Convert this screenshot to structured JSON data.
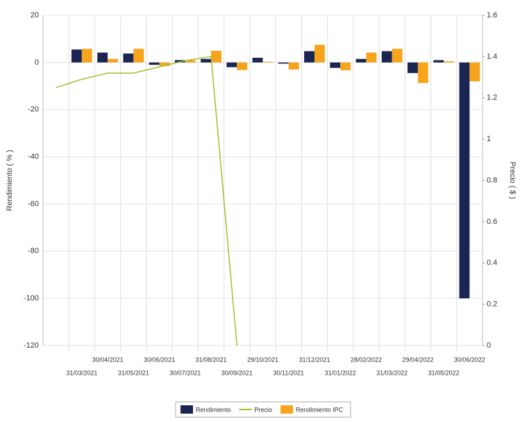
{
  "chart_data": {
    "type": "bar",
    "categories": [
      null,
      "31/03/2021",
      "30/04/2021",
      "31/05/2021",
      "30/06/2021",
      "30/07/2021",
      "31/08/2021",
      "30/09/2021",
      "29/10/2021",
      "30/11/2021",
      "31/12/2021",
      "31/01/2022",
      "28/02/2022",
      "31/03/2022",
      "29/04/2022",
      "31/05/2022",
      "30/06/2022"
    ],
    "series": [
      {
        "name": "Rendimiento",
        "type": "bar",
        "color": "#1b2551",
        "values": [
          null,
          5.5,
          4.2,
          3.8,
          -1,
          1,
          1.5,
          -2,
          2,
          -0.5,
          4.8,
          -2.3,
          1.5,
          4.8,
          -4.5,
          1,
          -100
        ]
      },
      {
        "name": "Precio",
        "type": "line",
        "axis": "y2",
        "color": "#a4bd2a",
        "values": [
          1.25,
          1.29,
          1.32,
          1.32,
          1.35,
          1.38,
          1.4,
          0,
          null,
          null,
          null,
          null,
          null,
          null,
          null,
          null,
          null
        ]
      },
      {
        "name": "Rendimiento IPC",
        "type": "bar",
        "color": "#f7a41d",
        "values": [
          null,
          5.8,
          1.5,
          5.8,
          -1.5,
          1,
          5,
          -3.2,
          0.3,
          -3,
          7.5,
          -3.3,
          4.2,
          5.8,
          -8.7,
          0.5,
          -8
        ]
      }
    ],
    "ylabel": "Rendimiento ( % )",
    "y2label": "Precio ( $ )",
    "ylim": [
      -120,
      20
    ],
    "yticks": [
      -120,
      -100,
      -80,
      -60,
      -40,
      -20,
      0,
      20
    ],
    "y2lim": [
      0,
      1.6
    ],
    "y2ticks": [
      0,
      0.2,
      0.4,
      0.6,
      0.8,
      1,
      1.2,
      1.4,
      1.6
    ],
    "grid": true,
    "legend": "bottom"
  }
}
